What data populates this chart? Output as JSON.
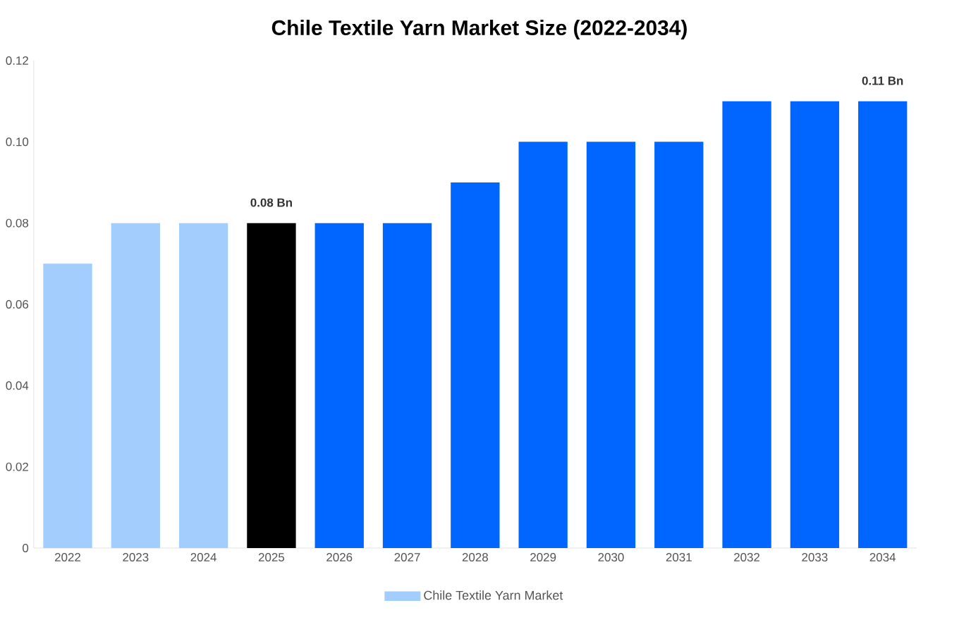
{
  "chart_data": {
    "type": "bar",
    "title": "Chile Textile Yarn Market Size (2022-2034)",
    "categories": [
      "2022",
      "2023",
      "2024",
      "2025",
      "2026",
      "2027",
      "2028",
      "2029",
      "2030",
      "2031",
      "2032",
      "2033",
      "2034"
    ],
    "series": [
      {
        "name": "Chile Textile Yarn Market",
        "color": "#a3cdfd",
        "colors": [
          "#a3cdfd",
          "#a3cdfd",
          "#a3cdfd",
          "#000000",
          "#0066ff",
          "#0066ff",
          "#0066ff",
          "#0066ff",
          "#0066ff",
          "#0066ff",
          "#0066ff",
          "#0066ff",
          "#0066ff"
        ],
        "values": [
          0.07,
          0.08,
          0.08,
          0.08,
          0.08,
          0.08,
          0.09,
          0.1,
          0.1,
          0.1,
          0.11,
          0.11,
          0.11
        ],
        "value_labels": [
          null,
          null,
          null,
          "0.08 Bn",
          null,
          null,
          null,
          null,
          null,
          null,
          null,
          null,
          "0.11 Bn"
        ]
      }
    ],
    "ylim": [
      0,
      0.12
    ],
    "yticks": [
      0,
      0.02,
      0.04,
      0.06,
      {
        "value": 0.08,
        "label": "0.08"
      },
      {
        "value": 0.1,
        "label": "0.10"
      },
      0.12
    ],
    "grid": false,
    "legend": "bottom"
  }
}
